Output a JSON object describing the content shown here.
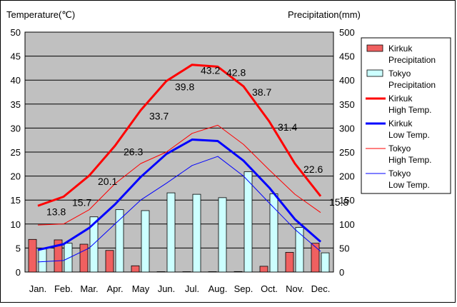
{
  "chart_data": {
    "type": "bar+line",
    "left_axis_title": "Temperature(℃)",
    "right_axis_title": "Precipitation(mm)",
    "left_ylim": [
      0,
      50
    ],
    "right_ylim": [
      0,
      500
    ],
    "left_ticks": [
      "0",
      "5",
      "10",
      "15",
      "20",
      "25",
      "30",
      "35",
      "40",
      "45",
      "50"
    ],
    "right_ticks": [
      "0",
      "50",
      "100",
      "150",
      "200",
      "250",
      "300",
      "350",
      "400",
      "450",
      "500"
    ],
    "categories": [
      "Jan.",
      "Feb.",
      "Mar.",
      "Apr.",
      "May",
      "Jun.",
      "Jul.",
      "Aug.",
      "Sep.",
      "Oct.",
      "Nov.",
      "Dec."
    ],
    "grid": true,
    "legend_position": "right",
    "bars": [
      {
        "name": "Kirkuk Precipitation",
        "label_lines": [
          "Kirkuk",
          "Precipitation"
        ],
        "color": "#f06060",
        "values": [
          68,
          67,
          58,
          45,
          13,
          0,
          0,
          0,
          1,
          12,
          41,
          60
        ]
      },
      {
        "name": "Tokyo Precipitation",
        "label_lines": [
          "Tokyo",
          "Precipitation"
        ],
        "color": "#ccffff",
        "values": [
          48,
          60,
          115,
          130,
          128,
          165,
          162,
          155,
          209,
          163,
          93,
          40
        ]
      }
    ],
    "lines": [
      {
        "name": "Kirkuk High Temp.",
        "label_lines": [
          "Kirkuk",
          "High Temp."
        ],
        "color": "#ff0000",
        "width": "thick",
        "values": [
          13.8,
          15.7,
          20.1,
          26.3,
          33.7,
          39.8,
          43.2,
          42.8,
          38.7,
          31.4,
          22.6,
          15.8
        ]
      },
      {
        "name": "Kirkuk Low Temp.",
        "label_lines": [
          "Kirkuk",
          "Low Temp."
        ],
        "color": "#0000ff",
        "width": "thick",
        "values": [
          4.6,
          5.8,
          9.2,
          14.1,
          19.8,
          24.6,
          27.6,
          27.3,
          23.2,
          17.6,
          11.0,
          6.3
        ]
      },
      {
        "name": "Tokyo High Temp.",
        "label_lines": [
          "Tokyo",
          "High Temp."
        ],
        "color": "#ff0000",
        "width": "thin",
        "values": [
          9.8,
          10.0,
          13.0,
          18.4,
          22.6,
          25.0,
          28.9,
          30.6,
          26.6,
          21.3,
          16.2,
          12.4
        ]
      },
      {
        "name": "Tokyo Low Temp.",
        "label_lines": [
          "Tokyo",
          "Low Temp."
        ],
        "color": "#0000ff",
        "width": "thin",
        "values": [
          2.1,
          2.4,
          5.0,
          10.0,
          15.0,
          18.5,
          22.2,
          24.1,
          20.0,
          14.4,
          8.9,
          4.3
        ]
      }
    ],
    "data_labels": {
      "series": "Kirkuk High Temp.",
      "values": [
        "13.8",
        "15.7",
        "20.1",
        "26.3",
        "33.7",
        "39.8",
        "43.2",
        "42.8",
        "38.7",
        "31.4",
        "22.6",
        "15.8"
      ]
    }
  }
}
